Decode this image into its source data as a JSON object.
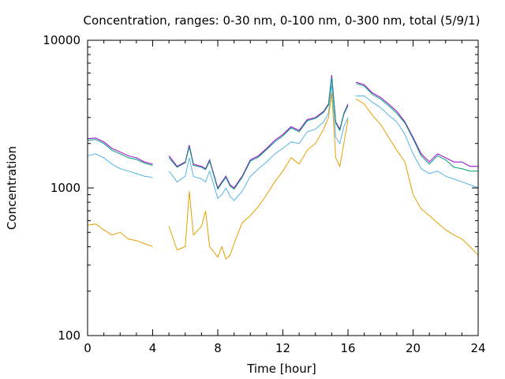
{
  "chart_data": {
    "type": "line",
    "title": "Concentration, ranges: 0-30 nm, 0-100 nm, 0-300 nm, total (5/9/1)",
    "xlabel": "Time [hour]",
    "ylabel": "Concentration",
    "xlim": [
      0,
      24
    ],
    "ylim": [
      100,
      10000
    ],
    "yscale": "log",
    "grid": false,
    "legend": "none",
    "x_ticks": [
      0,
      4,
      8,
      12,
      16,
      20,
      24
    ],
    "x_tick_labels": [
      "0",
      "4",
      "8",
      "12",
      "16",
      "20",
      "24"
    ],
    "y_ticks": [
      100,
      1000,
      10000
    ],
    "y_tick_labels": [
      "100",
      "1000",
      "10000"
    ],
    "x": [
      0,
      0.5,
      1,
      1.5,
      2,
      2.5,
      3,
      3.5,
      4,
      4.5,
      5,
      5.5,
      6,
      6.25,
      6.5,
      7,
      7.25,
      7.5,
      8,
      8.25,
      8.5,
      8.75,
      9,
      9.5,
      10,
      10.5,
      11,
      11.5,
      12,
      12.5,
      13,
      13.5,
      14,
      14.5,
      14.8,
      15,
      15.25,
      15.5,
      15.75,
      16,
      16.2,
      16.5,
      17,
      17.5,
      18,
      18.5,
      19,
      19.5,
      20,
      20.5,
      21,
      21.5,
      22,
      22.5,
      23,
      23.5,
      24
    ],
    "series": [
      {
        "color": "#9400d3",
        "values": [
          2150,
          2180,
          2050,
          1850,
          1750,
          1650,
          1600,
          1500,
          1450,
          null,
          1650,
          1400,
          1500,
          1950,
          1450,
          1400,
          1350,
          1550,
          1000,
          1100,
          1200,
          1050,
          1000,
          1200,
          1550,
          1650,
          1850,
          2100,
          2300,
          2600,
          2450,
          2900,
          3000,
          3300,
          3700,
          5800,
          2800,
          2500,
          3200,
          3700,
          null,
          5200,
          5000,
          4400,
          4100,
          3700,
          3300,
          2800,
          2200,
          1700,
          1500,
          1700,
          1600,
          1500,
          1500,
          1400,
          1400
        ]
      },
      {
        "color": "#009e73",
        "values": [
          2100,
          2130,
          2000,
          1800,
          1700,
          1600,
          1560,
          1470,
          1420,
          null,
          1600,
          1380,
          1480,
          1900,
          1420,
          1380,
          1330,
          1520,
          980,
          1080,
          1180,
          1030,
          980,
          1180,
          1520,
          1620,
          1820,
          2050,
          2250,
          2550,
          2400,
          2850,
          2950,
          3250,
          3650,
          5600,
          2750,
          2450,
          3150,
          3600,
          null,
          5100,
          4900,
          4300,
          4000,
          3600,
          3200,
          2750,
          2150,
          1650,
          1450,
          1650,
          1550,
          1380,
          1350,
          1300,
          1300
        ]
      },
      {
        "color": "#56b4e9",
        "values": [
          1650,
          1700,
          1600,
          1450,
          1350,
          1300,
          1250,
          1200,
          1180,
          null,
          1300,
          1100,
          1200,
          1600,
          1200,
          1150,
          1100,
          1300,
          850,
          900,
          1000,
          880,
          820,
          950,
          1200,
          1350,
          1500,
          1700,
          1850,
          2050,
          2000,
          2400,
          2500,
          2800,
          3200,
          5000,
          2200,
          2000,
          2600,
          3000,
          null,
          4200,
          4200,
          3800,
          3500,
          3100,
          2800,
          2300,
          1700,
          1350,
          1250,
          1300,
          1200,
          1150,
          1100,
          1050,
          1000
        ]
      },
      {
        "color": "#e69f00",
        "values": [
          560,
          570,
          520,
          480,
          500,
          450,
          440,
          420,
          400,
          null,
          550,
          380,
          400,
          950,
          480,
          550,
          700,
          400,
          340,
          400,
          330,
          350,
          420,
          580,
          650,
          750,
          900,
          1100,
          1300,
          1600,
          1450,
          1800,
          2000,
          2500,
          3000,
          4400,
          1600,
          1400,
          2000,
          2900,
          null,
          4000,
          3700,
          3100,
          2700,
          2200,
          1800,
          1500,
          900,
          720,
          650,
          580,
          520,
          480,
          450,
          400,
          350
        ]
      }
    ]
  }
}
